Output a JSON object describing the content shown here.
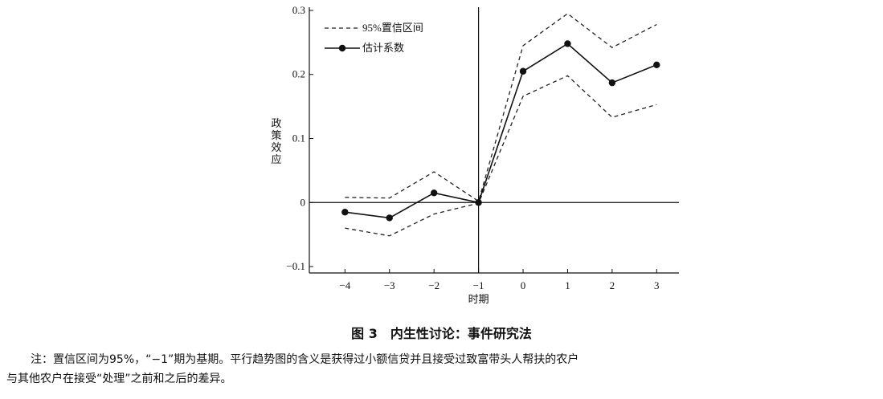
{
  "chart_data": {
    "type": "line",
    "x": [
      -4,
      -3,
      -2,
      -1,
      0,
      1,
      2,
      3
    ],
    "x_tick_labels": [
      "−4",
      "−3",
      "−2",
      "−1",
      "0",
      "1",
      "2",
      "3"
    ],
    "y_ticks": [
      -0.1,
      0,
      0.1,
      0.2,
      0.3
    ],
    "y_tick_labels": [
      "−0.1",
      "0",
      "0.1",
      "0.2",
      "0.3"
    ],
    "ylim": [
      -0.11,
      0.305
    ],
    "xlim": [
      -4.8,
      3.5
    ],
    "xlabel": "时期",
    "ylabel": "政策效应",
    "legend_position": "top-left",
    "series": [
      {
        "name": "95%置信区间",
        "style": "dashed",
        "role": "upper",
        "values": [
          0.008,
          0.007,
          0.048,
          0.002,
          0.245,
          0.295,
          0.242,
          0.278
        ]
      },
      {
        "name": "95%置信区间",
        "style": "dashed",
        "role": "lower",
        "values": [
          -0.04,
          -0.052,
          -0.018,
          -0.001,
          0.166,
          0.198,
          0.133,
          0.153
        ]
      },
      {
        "name": "估计系数",
        "style": "solid-marker",
        "values": [
          -0.015,
          -0.024,
          0.015,
          0,
          0.205,
          0.248,
          0.187,
          0.215
        ]
      }
    ],
    "reference_lines": {
      "x": -1,
      "y": 0
    }
  },
  "caption": "图 3　内生性讨论：事件研究法",
  "note": {
    "line1": "注：置信区间为95%，“−1”期为基期。平行趋势图的含义是获得过小额信贷并且接受过致富带头人帮扶的农户",
    "line2": "与其他农户在接受“处理”之前和之后的差异。"
  }
}
